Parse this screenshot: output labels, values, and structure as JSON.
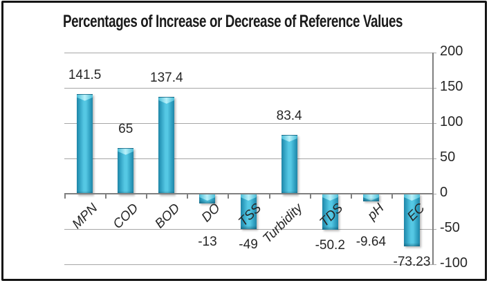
{
  "title": "Percentages of Increase or Decrease of Reference Values",
  "chart_data": {
    "type": "bar",
    "title": "Percentages of Increase or Decrease of Reference Values",
    "categories": [
      "MPN",
      "COD",
      "BOD",
      "DO",
      "TSS",
      "Turbidity",
      "TDS",
      "pH",
      "EC"
    ],
    "values": [
      141.5,
      65,
      137.4,
      -13,
      -49,
      83.4,
      -50.2,
      -9.64,
      -73.23
    ],
    "labels": [
      "141.5",
      "65",
      "137.4",
      "-13",
      "-49",
      "83.4",
      "-50.2",
      "-9.64",
      "-73.23"
    ],
    "xlabel": "",
    "ylabel": "",
    "ylim": [
      -100,
      200
    ],
    "y_ticks": [
      200,
      150,
      100,
      50,
      0,
      -50,
      -100
    ],
    "grid": true,
    "legend": "none",
    "bar_color": "#3bb0d4",
    "bar_color_dark": "#1f85a6",
    "bar_color_light": "#b9f1fa",
    "gridline_color": "#a6a6a6",
    "axis_color": "#7f7f7f",
    "text_color": "#262626",
    "frame_border_color": "#141414"
  }
}
